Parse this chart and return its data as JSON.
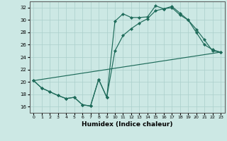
{
  "xlabel": "Humidex (Indice chaleur)",
  "bg_color": "#cce8e4",
  "grid_color": "#aacfcb",
  "line_color": "#1e6b5a",
  "xlim": [
    -0.5,
    23.5
  ],
  "ylim": [
    15.0,
    33.0
  ],
  "yticks": [
    16,
    18,
    20,
    22,
    24,
    26,
    28,
    30,
    32
  ],
  "xticks": [
    0,
    1,
    2,
    3,
    4,
    5,
    6,
    7,
    8,
    9,
    10,
    11,
    12,
    13,
    14,
    15,
    16,
    17,
    18,
    19,
    20,
    21,
    22,
    23
  ],
  "line1_x": [
    0,
    1,
    2,
    3,
    4,
    5,
    6,
    7,
    8,
    9,
    10,
    11,
    12,
    13,
    14,
    15,
    16,
    17,
    18,
    19,
    20,
    21,
    22,
    23
  ],
  "line1_y": [
    20.2,
    19.0,
    18.4,
    17.8,
    17.3,
    17.5,
    16.3,
    16.1,
    20.4,
    17.5,
    29.8,
    31.0,
    30.4,
    30.4,
    30.5,
    32.3,
    31.8,
    32.2,
    31.1,
    30.0,
    28.5,
    26.8,
    25.0,
    24.8
  ],
  "line2_x": [
    0,
    1,
    2,
    3,
    4,
    5,
    6,
    7,
    8,
    9,
    10,
    11,
    12,
    13,
    14,
    15,
    16,
    17,
    18,
    19,
    20,
    21,
    22,
    23
  ],
  "line2_y": [
    20.2,
    19.0,
    18.4,
    17.8,
    17.3,
    17.5,
    16.3,
    16.1,
    20.4,
    17.5,
    25.0,
    27.5,
    28.6,
    29.5,
    30.2,
    31.5,
    31.8,
    32.0,
    30.8,
    30.0,
    28.0,
    26.0,
    25.2,
    24.8
  ],
  "line3_x": [
    0,
    23
  ],
  "line3_y": [
    20.2,
    24.8
  ]
}
